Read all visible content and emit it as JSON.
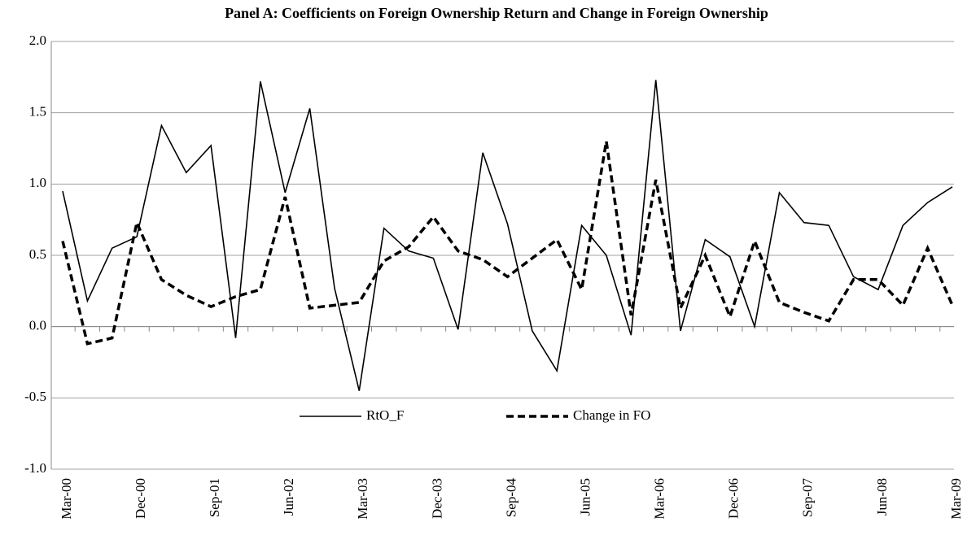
{
  "chart_data": {
    "type": "line",
    "title": "Panel A: Coefficients on Foreign Ownership Return and Change in Foreign Ownership",
    "categories": [
      "Mar-00",
      null,
      null,
      "Dec-00",
      null,
      null,
      "Sep-01",
      null,
      null,
      "Jun-02",
      null,
      null,
      "Mar-03",
      null,
      null,
      "Dec-03",
      null,
      null,
      "Sep-04",
      null,
      null,
      "Jun-05",
      null,
      null,
      "Mar-06",
      null,
      null,
      "Dec-06",
      null,
      null,
      "Sep-07",
      null,
      null,
      "Jun-08",
      null,
      null,
      "Mar-09"
    ],
    "series": [
      {
        "name": "RtO_F",
        "color": "#000000",
        "dash": false,
        "values": [
          0.95,
          0.18,
          0.55,
          0.63,
          1.41,
          1.08,
          1.27,
          -0.08,
          1.72,
          0.94,
          1.53,
          0.27,
          -0.45,
          0.69,
          0.53,
          0.48,
          -0.02,
          1.22,
          0.72,
          -0.03,
          -0.31,
          0.71,
          0.5,
          -0.06,
          1.73,
          -0.03,
          0.61,
          0.49,
          0.0,
          0.94,
          0.73,
          0.71,
          0.35,
          0.26,
          0.71,
          0.87,
          0.98
        ]
      },
      {
        "name": "Change in FO",
        "color": "#000000",
        "dash": true,
        "values": [
          0.6,
          -0.12,
          -0.08,
          0.73,
          0.33,
          0.22,
          0.14,
          0.21,
          0.26,
          0.91,
          0.13,
          0.15,
          0.17,
          0.46,
          0.56,
          0.77,
          0.53,
          0.47,
          0.35,
          0.48,
          0.61,
          0.26,
          1.3,
          0.08,
          1.03,
          0.13,
          0.5,
          0.07,
          0.6,
          0.17,
          0.1,
          0.04,
          0.33,
          0.33,
          0.15,
          0.55,
          0.15
        ]
      }
    ],
    "ylim": [
      -1,
      2
    ],
    "yticks": [
      {
        "value": -1,
        "label": "-1.0"
      },
      -0.5,
      {
        "value": 0,
        "label": "0.0"
      },
      0.5,
      {
        "value": 1,
        "label": "1.0"
      },
      1.5,
      {
        "value": 2,
        "label": "2.0"
      }
    ],
    "grid": true,
    "legend": "bottom"
  }
}
